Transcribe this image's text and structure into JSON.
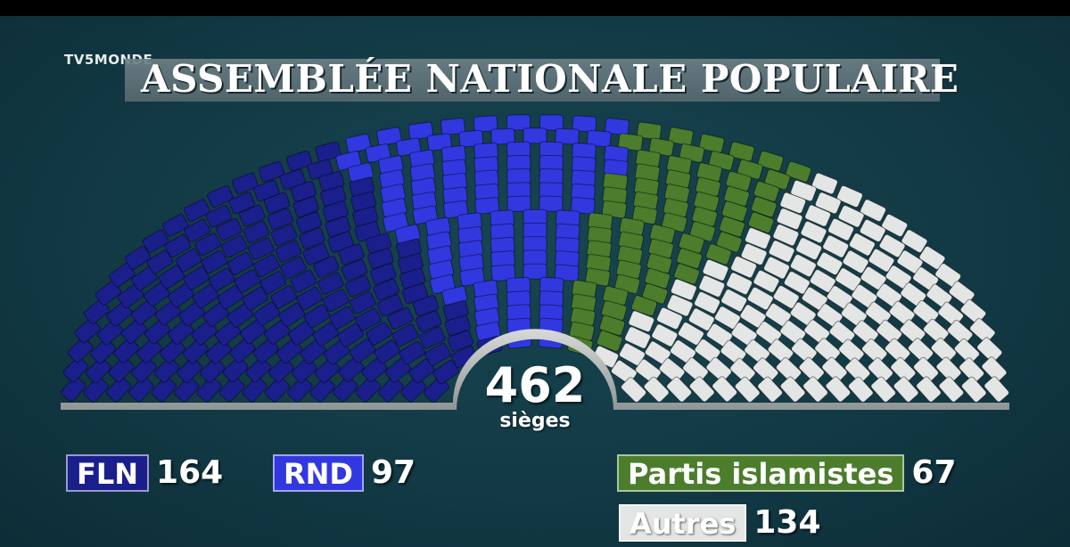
{
  "channel": "TV5MONDE",
  "title": "ASSEMBLÉE NATIONALE POPULAIRE",
  "total": {
    "count": "462",
    "unit": "sièges"
  },
  "colors": {
    "FLN": "#1b1f8c",
    "RND": "#3138e0",
    "Partis islamistes": "#4b7d2c",
    "Autres": "#e4e6e6"
  },
  "chart_data": {
    "type": "hemicycle",
    "title": "ASSEMBLÉE NATIONALE POPULAIRE",
    "total_seats": 462,
    "categories": [
      "FLN",
      "RND",
      "Partis islamistes",
      "Autres"
    ],
    "values": [
      164,
      97,
      67,
      134
    ],
    "order": "left-to-right"
  },
  "legend": [
    {
      "label": "FLN",
      "value": "164"
    },
    {
      "label": "RND",
      "value": "97"
    },
    {
      "label": "Partis islamistes",
      "value": "67"
    },
    {
      "label": "Autres",
      "value": "134"
    }
  ]
}
